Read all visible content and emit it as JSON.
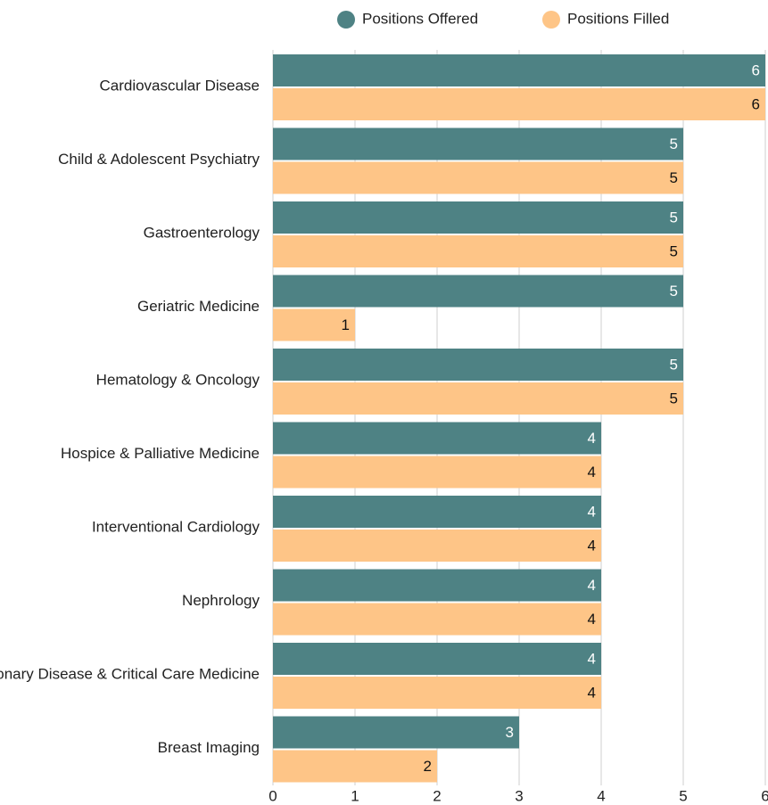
{
  "chart_data": {
    "type": "bar",
    "orientation": "horizontal",
    "categories": [
      "Cardiovascular Disease",
      "Child & Adolescent Psychiatry",
      "Gastroenterology",
      "Geriatric Medicine",
      "Hematology & Oncology",
      "Hospice & Palliative Medicine",
      "Interventional Cardiology",
      "Nephrology",
      "Pulmonary Disease & Critical Care Medicine",
      "Breast Imaging"
    ],
    "series": [
      {
        "name": "Positions Offered",
        "color": "#4e8284",
        "values": [
          6,
          5,
          5,
          5,
          5,
          4,
          4,
          4,
          4,
          3
        ]
      },
      {
        "name": "Positions Filled",
        "color": "#fec587",
        "values": [
          6,
          5,
          5,
          1,
          5,
          4,
          4,
          4,
          4,
          2
        ]
      }
    ],
    "xlim": [
      0,
      6
    ],
    "xticks": [
      0,
      1,
      2,
      3,
      4,
      5,
      6
    ],
    "grid": true,
    "legend": "top"
  }
}
